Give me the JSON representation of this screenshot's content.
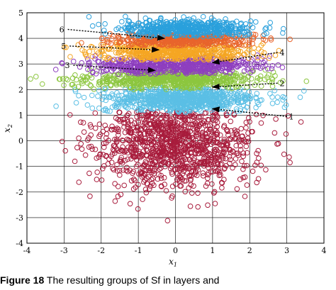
{
  "chart_data": {
    "type": "scatter",
    "title": "",
    "xlabel": "x",
    "xlabel_sub": "1",
    "ylabel": "x",
    "ylabel_sub": "2",
    "xlim": [
      -4,
      4
    ],
    "ylim": [
      -4,
      5
    ],
    "xticks": [
      -4,
      -3,
      -2,
      -1,
      0,
      1,
      2,
      3,
      4
    ],
    "yticks": [
      -4,
      -3,
      -2,
      -1,
      0,
      1,
      2,
      3,
      4,
      5
    ],
    "grid": true,
    "marker": "open-circle",
    "clusters": [
      {
        "id": "1",
        "color": "#a81c3c",
        "shape": "disc",
        "cx": 0.0,
        "cy": 0.0,
        "sx": 1.05,
        "sy": 0.95,
        "ymax": 1.15,
        "n": 1100
      },
      {
        "id": "2",
        "color": "#5bbfe5",
        "shape": "band",
        "cx": 0.15,
        "cy": 1.6,
        "sx": 1.05,
        "sy": 0.25,
        "ymin": 1.1,
        "ymax": 2.1,
        "n": 750
      },
      {
        "id": "3",
        "color": "#8cc63f",
        "shape": "band",
        "cx": -0.1,
        "cy": 2.4,
        "sx": 1.15,
        "sy": 0.18,
        "ymin": 2.0,
        "ymax": 2.8,
        "n": 650
      },
      {
        "id": "4",
        "color": "#8e3fbf",
        "shape": "band",
        "cx": 0.0,
        "cy": 2.95,
        "sx": 1.1,
        "sy": 0.18,
        "ymin": 2.6,
        "ymax": 3.35,
        "n": 600
      },
      {
        "id": "5",
        "color": "#f5a623",
        "shape": "band",
        "cx": 0.0,
        "cy": 3.5,
        "sx": 1.05,
        "sy": 0.18,
        "ymin": 3.15,
        "ymax": 3.85,
        "n": 550
      },
      {
        "id": "6",
        "color": "#e8642c",
        "shape": "band",
        "cx": 0.15,
        "cy": 3.95,
        "sx": 0.95,
        "sy": 0.15,
        "ymin": 3.7,
        "ymax": 4.2,
        "n": 450
      },
      {
        "id": "7",
        "color": "#2aa0dc",
        "shape": "band",
        "cx": 0.35,
        "cy": 4.35,
        "sx": 0.9,
        "sy": 0.2,
        "ymin": 4.05,
        "ymax": 4.9,
        "n": 500
      }
    ],
    "annotations": [
      {
        "label": "1",
        "from": [
          3.0,
          0.95
        ],
        "to": [
          1.0,
          1.25
        ]
      },
      {
        "label": "2",
        "from": [
          2.75,
          2.25
        ],
        "to": [
          1.0,
          2.1
        ]
      },
      {
        "label": "3",
        "from": [
          -2.75,
          2.95
        ],
        "to": [
          -0.55,
          2.75
        ]
      },
      {
        "label": "4",
        "from": [
          2.75,
          3.45
        ],
        "to": [
          1.0,
          3.05
        ]
      },
      {
        "label": "5",
        "from": [
          -2.85,
          3.7
        ],
        "to": [
          -0.45,
          3.55
        ]
      },
      {
        "label": "6",
        "from": [
          -2.9,
          4.35
        ],
        "to": [
          -0.3,
          4.0
        ]
      }
    ]
  },
  "caption": {
    "label": "Figure 18",
    "text": " The resulting groups of Sf in layers and"
  }
}
